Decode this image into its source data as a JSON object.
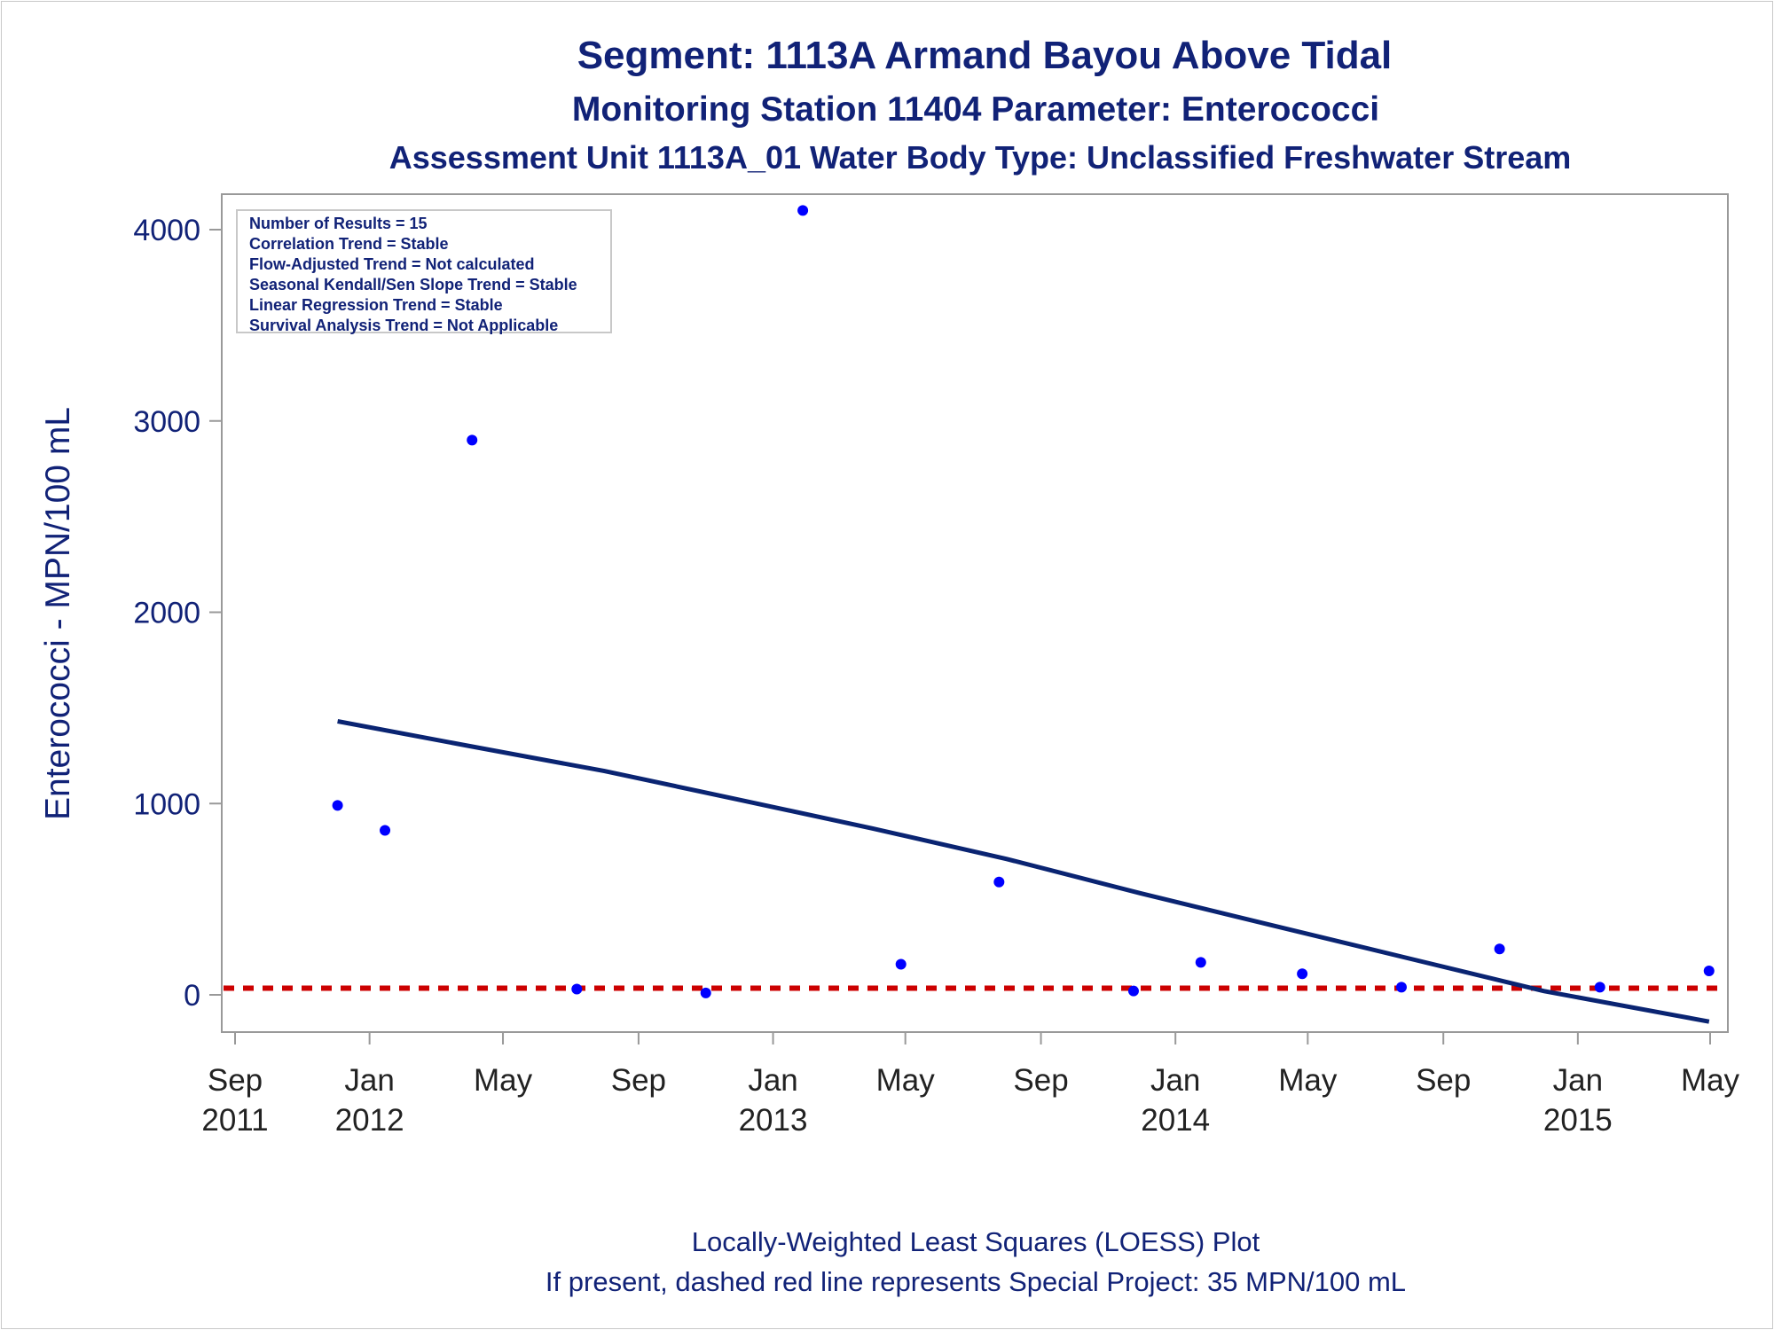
{
  "titles": {
    "line1": "Segment: 1113A  Armand Bayou Above Tidal",
    "line2": "Monitoring Station 11404 Parameter: Enterococci",
    "line3": "Assessment Unit 1113A_01   Water Body Type: Unclassified Freshwater Stream"
  },
  "footnotes": {
    "line1": "Locally-Weighted Least Squares (LOESS) Plot",
    "line2": "If present, dashed red line represents Special Project: 35 MPN/100 mL"
  },
  "legend": [
    "Number of Results = 15",
    "Correlation Trend = Stable",
    "Flow-Adjusted Trend = Not calculated",
    "Seasonal Kendall/Sen Slope Trend = Stable",
    "Linear Regression Trend = Stable",
    "Survival Analysis Trend = Not Applicable"
  ],
  "colors": {
    "text": "#112277",
    "points": "#0000ff",
    "trend_line": "#0a2472",
    "reference_line": "#cc0000",
    "axis": "#999999"
  },
  "chart_data": {
    "type": "scatter",
    "ylabel": "Enterococci - MPN/100 mL",
    "xlabel": "",
    "ylim": [
      -200,
      4200
    ],
    "xlim": [
      "2011-09-01",
      "2015-05-01"
    ],
    "y_ticks": [
      0,
      1000,
      2000,
      3000,
      4000
    ],
    "x_ticks": [
      {
        "date": "2011-09-01",
        "label": "Sep",
        "year": "2011"
      },
      {
        "date": "2012-01-01",
        "label": "Jan",
        "year": "2012"
      },
      {
        "date": "2012-05-01",
        "label": "May",
        "year": ""
      },
      {
        "date": "2012-09-01",
        "label": "Sep",
        "year": ""
      },
      {
        "date": "2013-01-01",
        "label": "Jan",
        "year": "2013"
      },
      {
        "date": "2013-05-01",
        "label": "May",
        "year": ""
      },
      {
        "date": "2013-09-01",
        "label": "Sep",
        "year": ""
      },
      {
        "date": "2014-01-01",
        "label": "Jan",
        "year": "2014"
      },
      {
        "date": "2014-05-01",
        "label": "May",
        "year": ""
      },
      {
        "date": "2014-09-01",
        "label": "Sep",
        "year": ""
      },
      {
        "date": "2015-01-01",
        "label": "Jan",
        "year": "2015"
      },
      {
        "date": "2015-05-01",
        "label": "May",
        "year": ""
      }
    ],
    "series": [
      {
        "points": [
          {
            "x": "2011-12-03",
            "y": 990
          },
          {
            "x": "2012-01-15",
            "y": 860
          },
          {
            "x": "2012-04-03",
            "y": 2900
          },
          {
            "x": "2012-07-07",
            "y": 30
          },
          {
            "x": "2012-11-01",
            "y": 10
          },
          {
            "x": "2013-01-28",
            "y": 4100
          },
          {
            "x": "2013-04-27",
            "y": 160
          },
          {
            "x": "2013-07-25",
            "y": 590
          },
          {
            "x": "2013-11-24",
            "y": 20
          },
          {
            "x": "2014-01-24",
            "y": 170
          },
          {
            "x": "2014-04-26",
            "y": 110
          },
          {
            "x": "2014-07-25",
            "y": 40
          },
          {
            "x": "2014-10-22",
            "y": 240
          },
          {
            "x": "2015-01-21",
            "y": 40
          },
          {
            "x": "2015-04-30",
            "y": 125
          }
        ]
      }
    ],
    "loess_line": [
      {
        "x": "2011-12-03",
        "y": 1430
      },
      {
        "x": "2012-04-01",
        "y": 1300
      },
      {
        "x": "2012-08-01",
        "y": 1170
      },
      {
        "x": "2012-12-01",
        "y": 1020
      },
      {
        "x": "2013-04-01",
        "y": 870
      },
      {
        "x": "2013-08-01",
        "y": 710
      },
      {
        "x": "2013-12-01",
        "y": 530
      },
      {
        "x": "2014-04-01",
        "y": 360
      },
      {
        "x": "2014-08-01",
        "y": 190
      },
      {
        "x": "2014-12-01",
        "y": 20
      },
      {
        "x": "2015-04-30",
        "y": -140
      }
    ],
    "reference_line": {
      "y": 35
    }
  }
}
